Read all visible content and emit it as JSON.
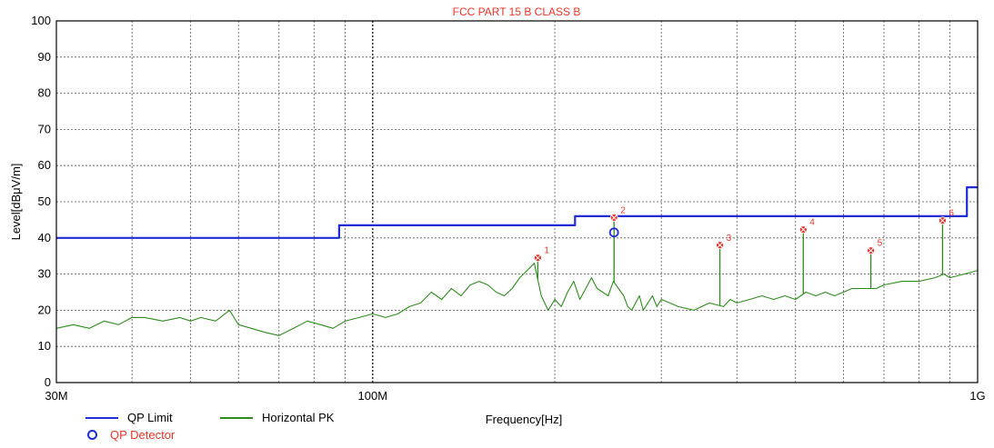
{
  "chart_data": {
    "type": "line",
    "title": "FCC PART 15 B CLASS B",
    "xlabel": "Frequency[Hz]",
    "ylabel": "Level[dBμV/m]",
    "xscale": "log",
    "xlim": [
      30,
      1000
    ],
    "ylim": [
      0,
      100
    ],
    "y_ticks": [
      0,
      10,
      20,
      30,
      40,
      50,
      60,
      70,
      80,
      90,
      100
    ],
    "x_tick_labels": [
      {
        "value": 30,
        "label": "30M"
      },
      {
        "value": 100,
        "label": "100M"
      },
      {
        "value": 1000,
        "label": "1G"
      }
    ],
    "grid": true,
    "legend_position": "bottom-left",
    "series": [
      {
        "name": "QP Limit",
        "color": "#1f2bd6",
        "step": true,
        "x": [
          30,
          88,
          88,
          216,
          216,
          960,
          960,
          1000
        ],
        "y": [
          40,
          40,
          43.5,
          43.5,
          46,
          46,
          54,
          54
        ]
      },
      {
        "name": "Horizontal PK",
        "color": "#2e8b1e",
        "x": [
          30,
          32,
          34,
          36,
          38,
          40,
          42,
          45,
          48,
          50,
          52,
          55,
          58,
          60,
          63,
          66,
          70,
          74,
          78,
          82,
          86,
          90,
          95,
          100,
          105,
          110,
          115,
          120,
          125,
          130,
          135,
          140,
          145,
          150,
          155,
          160,
          165,
          170,
          175,
          180,
          185,
          190,
          195,
          200,
          205,
          210,
          215,
          220,
          225,
          230,
          235,
          240,
          245,
          250,
          255,
          260,
          264,
          268,
          272,
          276,
          280,
          285,
          290,
          295,
          300,
          310,
          320,
          340,
          360,
          380,
          390,
          400,
          420,
          440,
          460,
          480,
          500,
          520,
          540,
          560,
          580,
          600,
          620,
          650,
          680,
          700,
          750,
          800,
          850,
          880,
          900,
          950,
          1000
        ],
        "y": [
          15,
          16,
          15,
          17,
          16,
          18,
          18,
          17,
          18,
          17,
          18,
          17,
          20,
          16,
          15,
          14,
          13,
          15,
          17,
          16,
          15,
          17,
          18,
          19,
          18,
          19,
          21,
          22,
          25,
          23,
          26,
          24,
          27,
          28,
          27,
          25,
          24,
          26,
          29,
          31,
          33,
          24,
          20,
          23,
          21,
          25,
          28,
          23,
          26,
          29,
          26,
          25,
          24,
          28,
          26,
          24,
          21,
          20,
          22,
          24,
          20,
          22,
          24,
          21,
          23,
          22,
          21,
          20,
          22,
          21,
          23,
          22,
          23,
          24,
          23,
          24,
          23,
          25,
          24,
          25,
          24,
          25,
          26,
          26,
          26,
          27,
          28,
          28,
          29,
          30,
          29,
          30,
          31
        ]
      }
    ],
    "peaks": [
      {
        "id": "1",
        "x": 187.5,
        "y": 34.5
      },
      {
        "id": "2",
        "x": 250.6,
        "y": 45.6
      },
      {
        "id": "3",
        "x": 374.9,
        "y": 38.0
      },
      {
        "id": "4",
        "x": 515.0,
        "y": 42.3
      },
      {
        "id": "5",
        "x": 666.0,
        "y": 36.5
      },
      {
        "id": "6",
        "x": 875.0,
        "y": 44.8
      }
    ],
    "qp_detector": [
      {
        "x": 250.6,
        "y": 41.5
      }
    ],
    "legend": [
      {
        "name": "QP Limit",
        "symbol": "line",
        "color": "#1f2bd6"
      },
      {
        "name": "Horizontal PK",
        "symbol": "line",
        "color": "#2e8b1e"
      },
      {
        "name": "QP Detector",
        "symbol": "circle",
        "color": "#1f2bd6"
      }
    ],
    "colors": {
      "title": "#e8342a",
      "marker": "#e8342a",
      "axis": "#000000",
      "grid": "#555555"
    }
  }
}
